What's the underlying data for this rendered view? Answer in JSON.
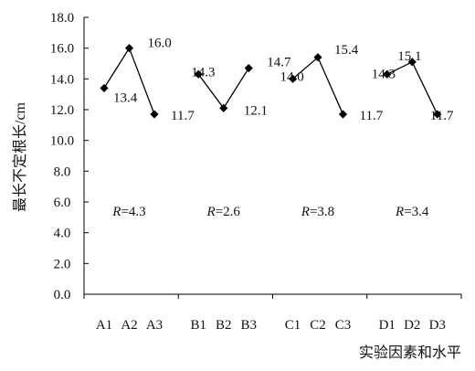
{
  "chart_data": {
    "type": "line",
    "title": "",
    "ylabel": "最长不定根长/cm",
    "xlabel": "实验因素和水平",
    "ylim": [
      0,
      18
    ],
    "yticks": [
      "0.0",
      "2.0",
      "4.0",
      "6.0",
      "8.0",
      "10.0",
      "12.0",
      "14.0",
      "16.0",
      "18.0"
    ],
    "grid": false,
    "groups": [
      {
        "name": "A",
        "categories": [
          "A1",
          "A2",
          "A3"
        ],
        "values": [
          13.4,
          16.0,
          11.7
        ],
        "value_labels": [
          "13.4",
          "16.0",
          "11.7"
        ],
        "range_label": "=4.3"
      },
      {
        "name": "B",
        "categories": [
          "B1",
          "B2",
          "B3"
        ],
        "values": [
          14.3,
          12.1,
          14.7
        ],
        "value_labels": [
          "14.3",
          "12.1",
          "14.7"
        ],
        "range_label": "=2.6"
      },
      {
        "name": "C",
        "categories": [
          "C1",
          "C2",
          "C3"
        ],
        "values": [
          14.0,
          15.4,
          11.7
        ],
        "value_labels": [
          "14.0",
          "15.4",
          "11.7"
        ],
        "range_label": "=3.8"
      },
      {
        "name": "D",
        "categories": [
          "D1",
          "D2",
          "D3"
        ],
        "values": [
          14.3,
          15.1,
          11.7
        ],
        "value_labels": [
          "14.3",
          "15.1",
          "11.7"
        ],
        "range_label": "=3.4"
      }
    ],
    "range_symbol": "R",
    "line_color": "#000000",
    "marker": "diamond"
  }
}
